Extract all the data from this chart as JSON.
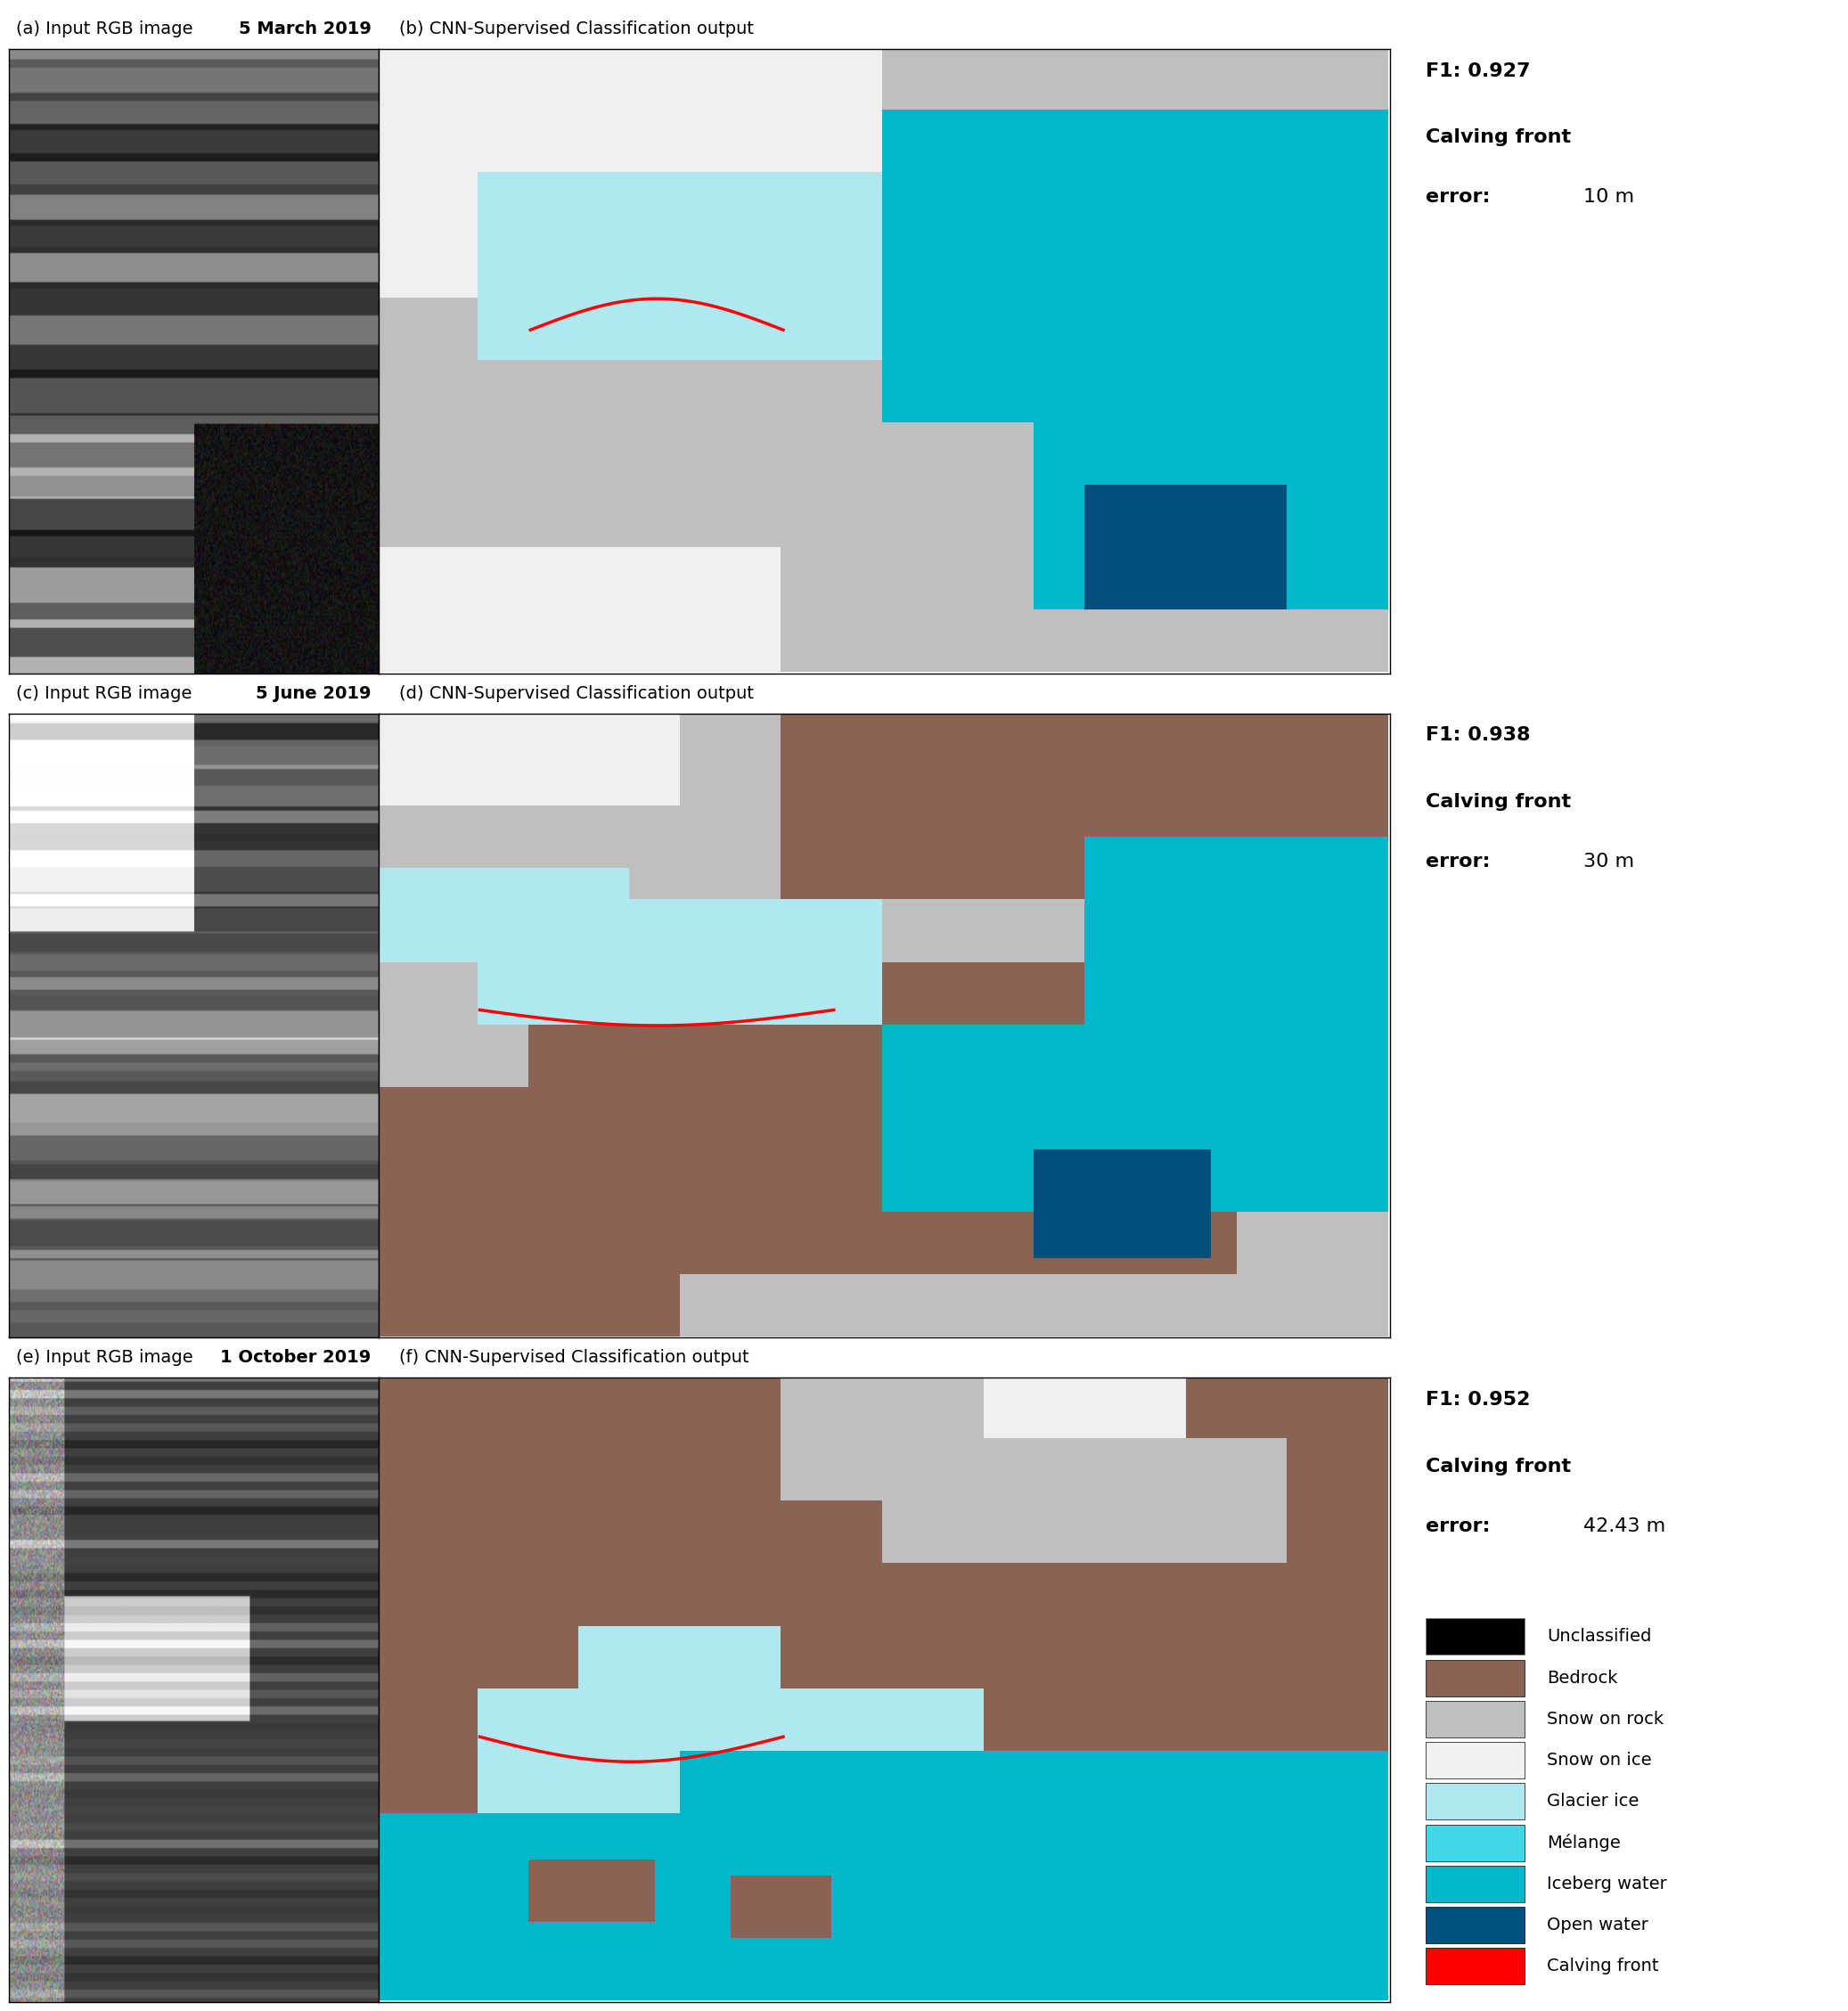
{
  "rows": [
    {
      "left_label": "(a) Input RGB image",
      "left_date": "5 March 2019",
      "right_label": "(b) CNN-Supervised Classification output",
      "f1": "0.927",
      "calving_error": "10 m",
      "rgb_colors": {
        "bg": "#c8c8c8",
        "features": [
          "#888888",
          "#aaaaaa",
          "#666666",
          "#444444",
          "#bbbbbb"
        ]
      }
    },
    {
      "left_label": "(c) Input RGB image",
      "left_date": "5 June 2019",
      "right_label": "(d) CNN-Supervised Classification output",
      "f1": "0.938",
      "calving_error": "30 m",
      "rgb_colors": {
        "bg": "#555555",
        "features": [
          "#888888",
          "#aaaaaa",
          "#333333",
          "#777777",
          "#222222"
        ]
      }
    },
    {
      "left_label": "(e) Input RGB image",
      "left_date": "1 October 2019",
      "right_label": "(f) CNN-Supervised Classification output",
      "f1": "0.952",
      "calving_error": "42.43 m",
      "rgb_colors": {
        "bg": "#444444",
        "features": [
          "#888888",
          "#aaaaaa",
          "#333333",
          "#222222",
          "#999999"
        ]
      }
    }
  ],
  "legend_items": [
    {
      "label": "Unclassified",
      "color": "#000000"
    },
    {
      "label": "Bedrock",
      "color": "#8B6355"
    },
    {
      "label": "Snow on rock",
      "color": "#C0C0C0"
    },
    {
      "label": "Snow on ice",
      "color": "#F0F0F0"
    },
    {
      "label": "Glacier ice",
      "color": "#B0E8F0"
    },
    {
      "label": "Mélange",
      "color": "#40D8E8"
    },
    {
      "label": "Iceberg water",
      "color": "#00B8CC"
    },
    {
      "label": "Open water",
      "color": "#005080"
    },
    {
      "label": "Calving front",
      "color": "#FF0000"
    }
  ],
  "colors": {
    "unclassified": "#000000",
    "bedrock": "#8B6355",
    "snow_rock": "#C0C0C0",
    "snow_ice": "#F0F0F0",
    "glacier_ice": "#B0E8F0",
    "melange": "#40D8E8",
    "iceberg_water": "#00B8CC",
    "open_water": "#005080",
    "calving_front": "#FF0000"
  }
}
